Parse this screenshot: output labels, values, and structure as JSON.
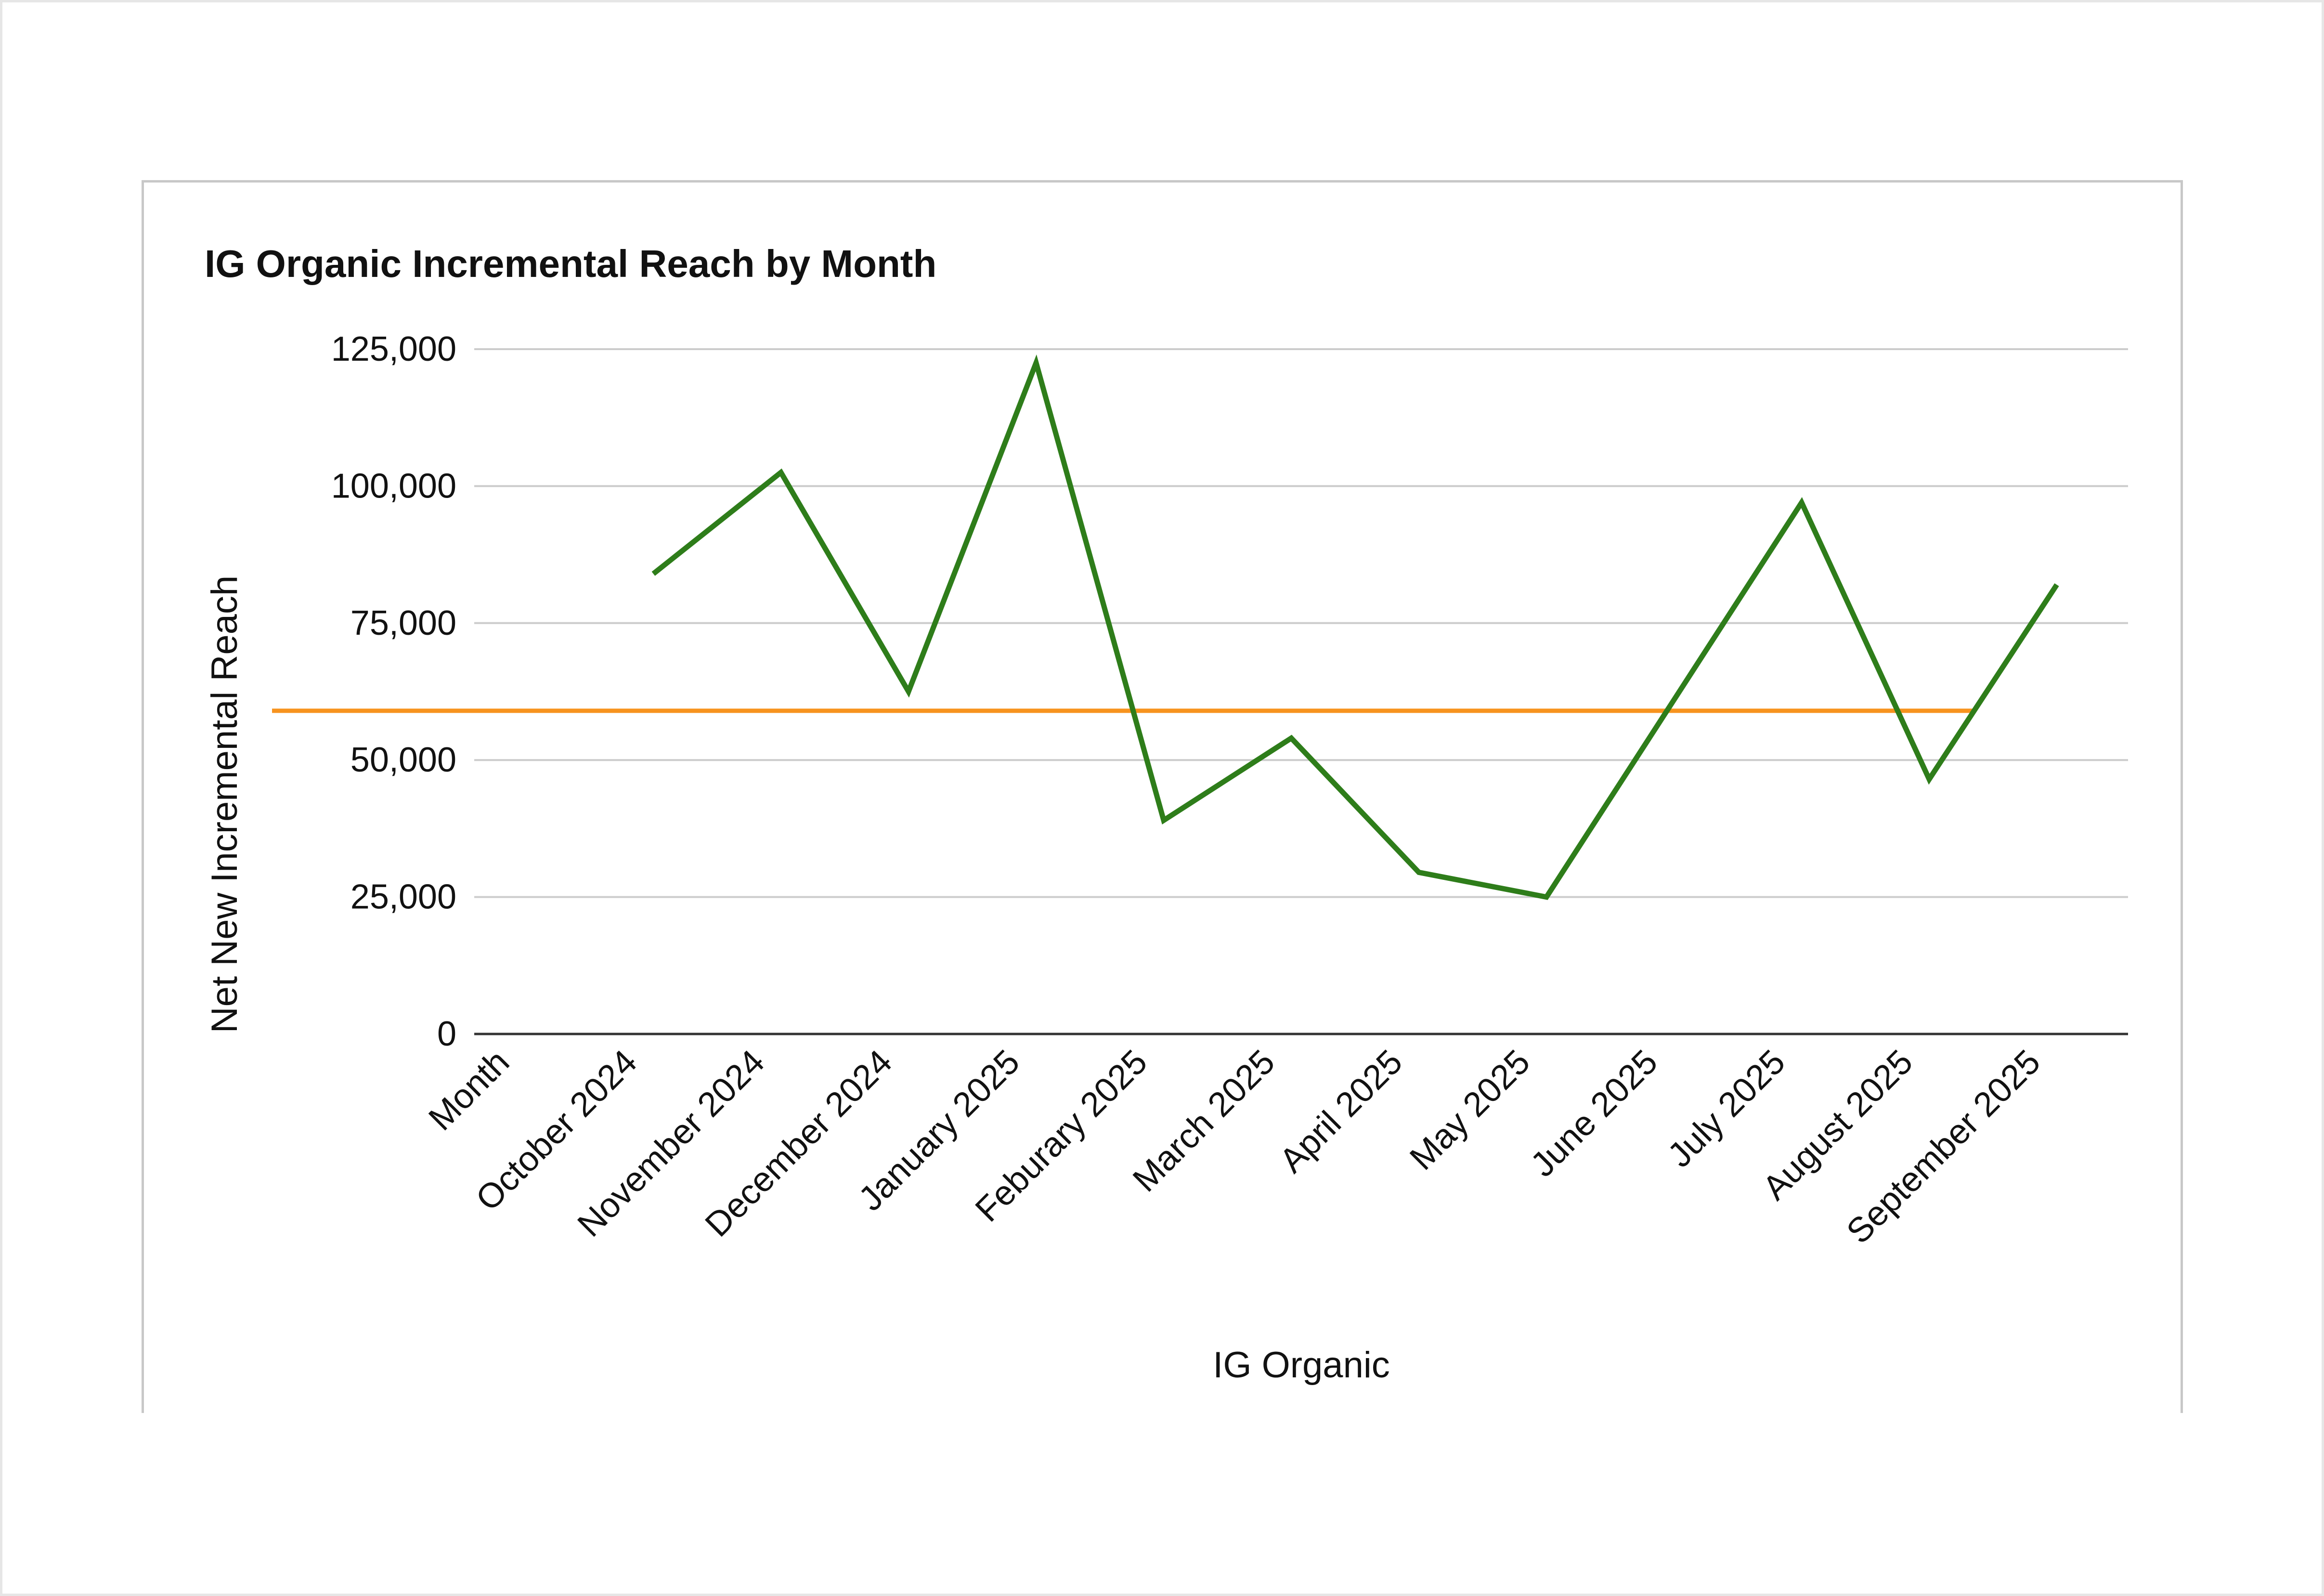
{
  "chart_data": {
    "type": "line",
    "title": "IG Organic Incremental Reach by Month",
    "xlabel": "IG Organic",
    "ylabel": "Net New Incremental Reach",
    "categories": [
      "Month",
      "October 2024",
      "November 2024",
      "December 2024",
      "January 2025",
      "Feburary 2025",
      "March 2025",
      "April 2025",
      "May 2025",
      "June 2025",
      "July 2025",
      "August 2025",
      "September 2025"
    ],
    "series": [
      {
        "color": "#2e7d1a",
        "values": [
          null,
          84000,
          102500,
          62500,
          122500,
          39000,
          54000,
          29500,
          25000,
          61000,
          97000,
          46500,
          82000
        ]
      }
    ],
    "reference_line": {
      "value": 59000,
      "color": "#f7931e",
      "from_category": "Month",
      "to_category": "August 2025"
    },
    "yticks": [
      "0",
      "25,000",
      "50,000",
      "75,000",
      "100,000",
      "125,000"
    ],
    "ylim": [
      0,
      125000
    ],
    "grid": true,
    "legend": "none"
  }
}
